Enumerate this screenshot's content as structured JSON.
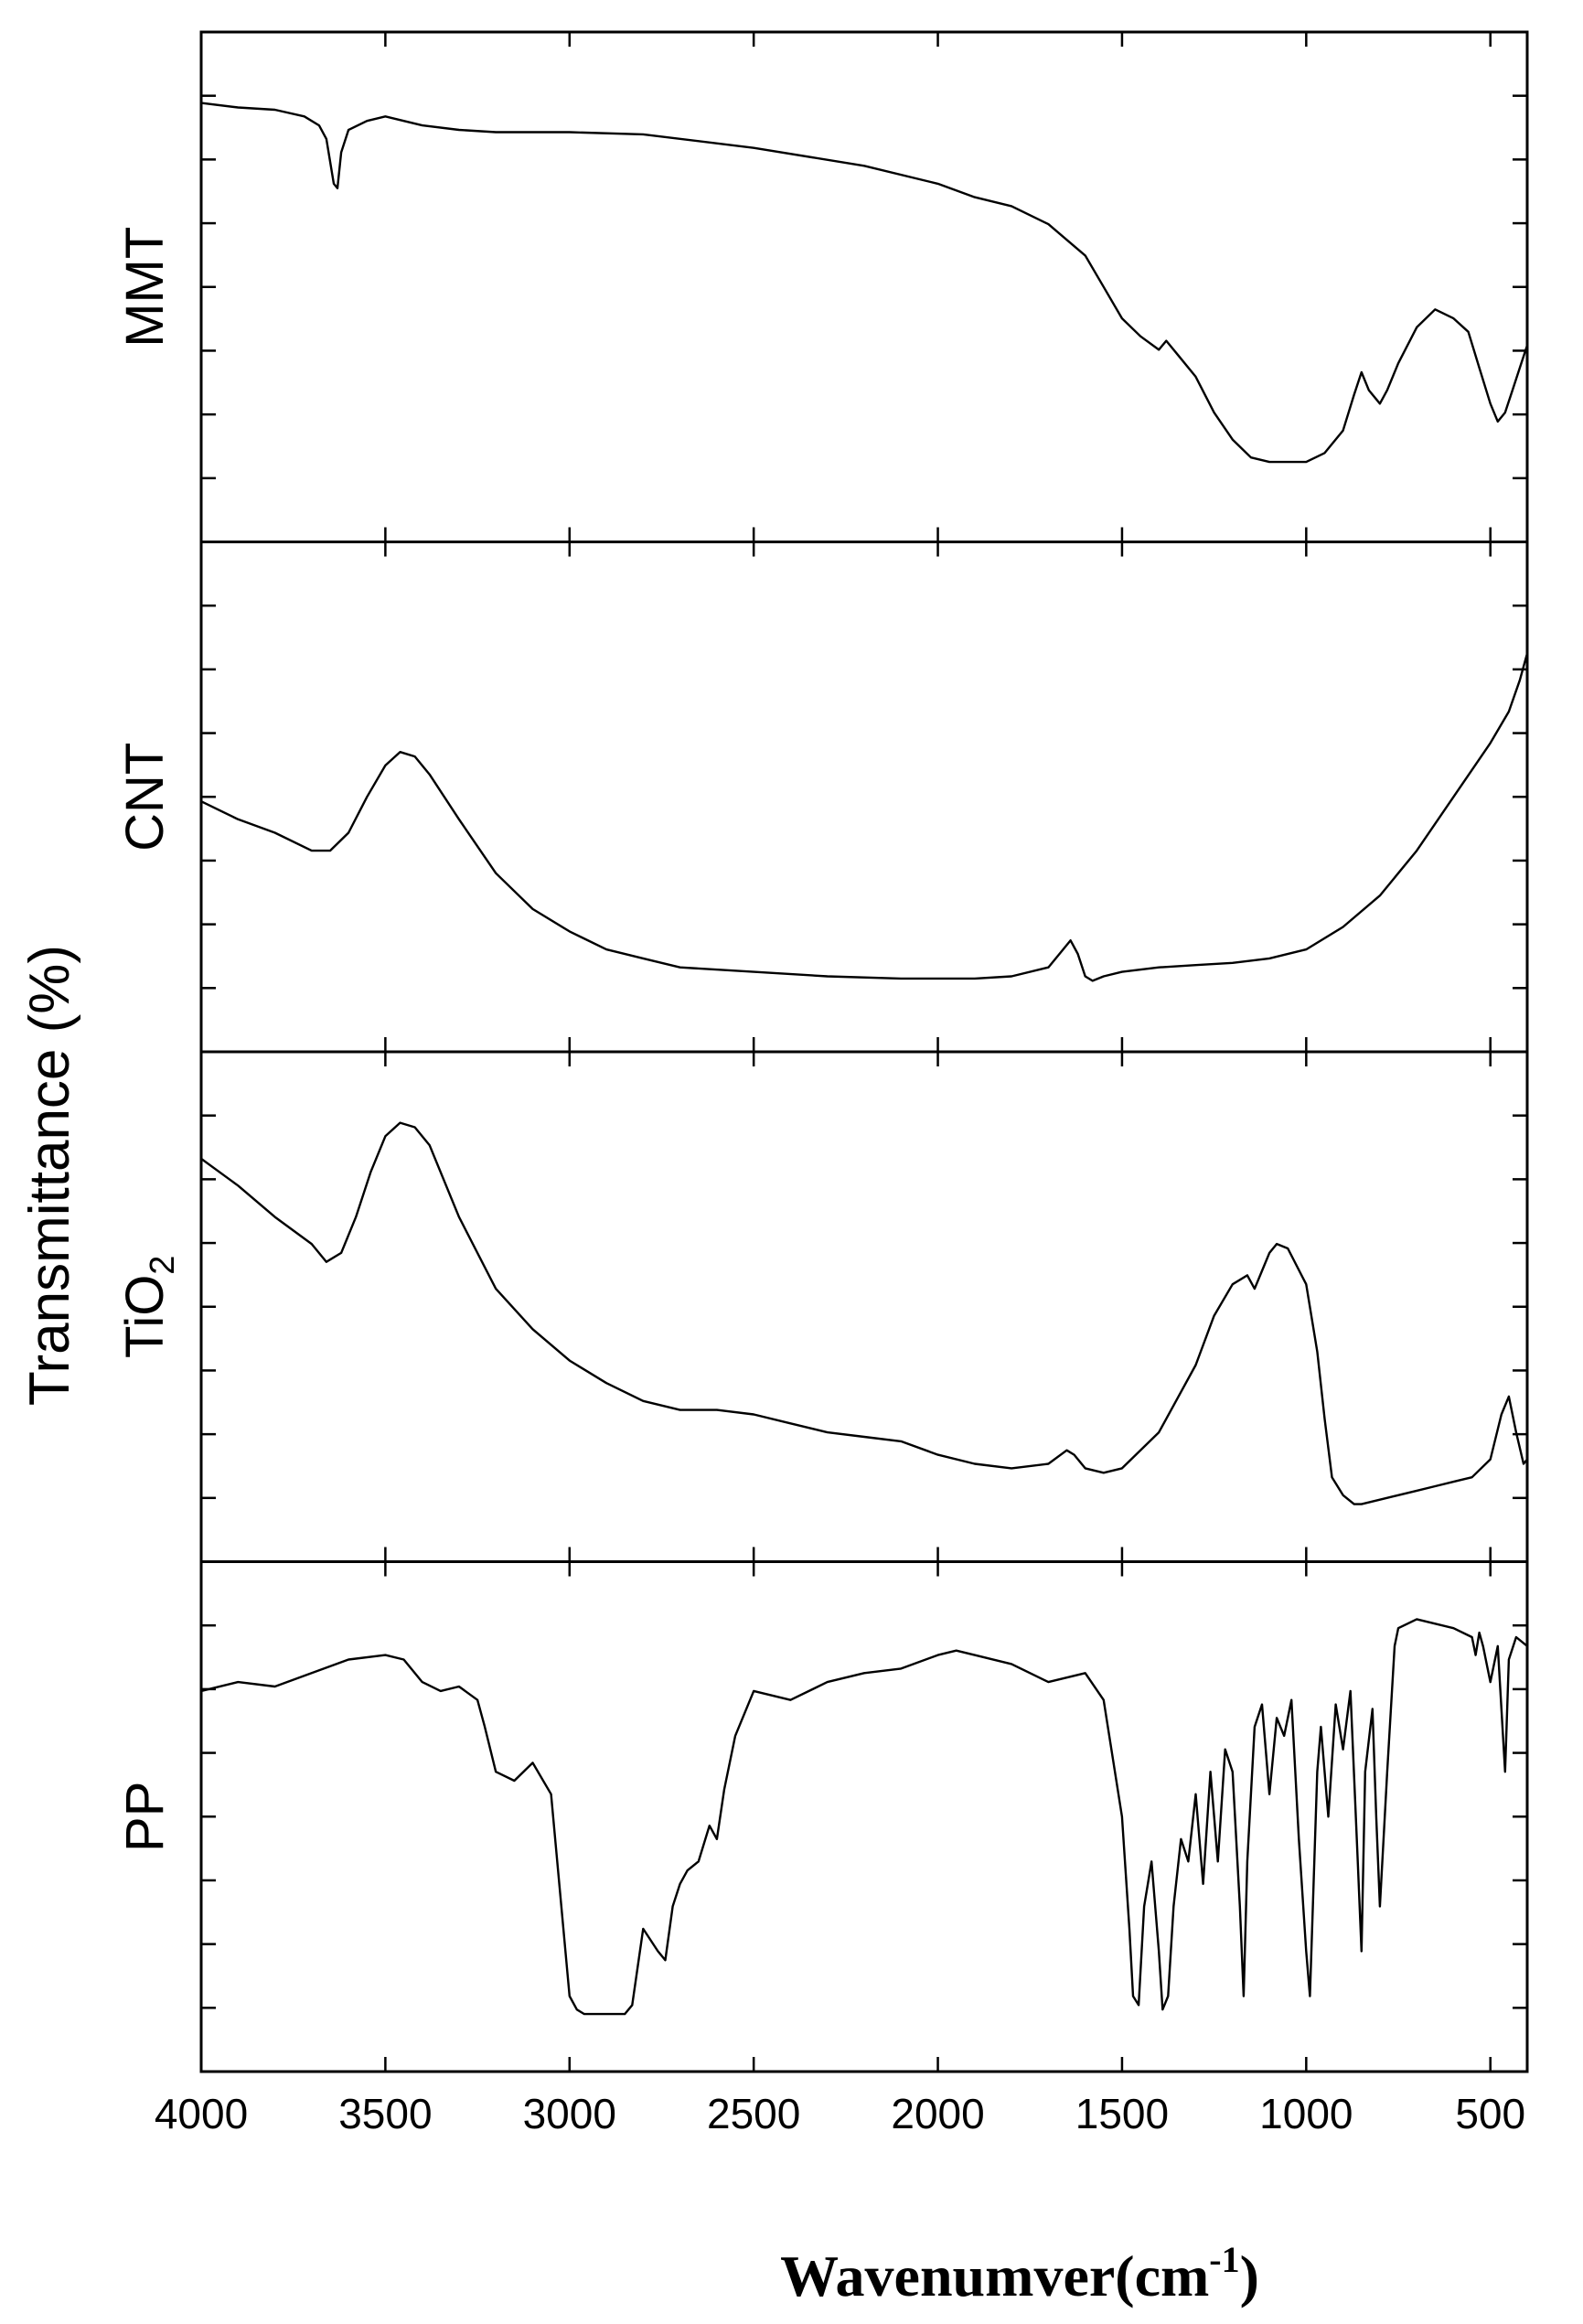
{
  "chart_data": {
    "type": "line",
    "xlabel": "Wavenumver(cm",
    "xlabel_sup": "-1",
    "xlabel_end": ")",
    "ylabel": "Transmittance (%)",
    "xlim": [
      4000,
      400
    ],
    "x_reversed": true,
    "xticks": [
      4000,
      3500,
      3000,
      2500,
      2000,
      1500,
      1000,
      500
    ],
    "xtick_labels": [
      "4000",
      "3500",
      "3000",
      "2500",
      "2000",
      "1500",
      "1000",
      "500"
    ],
    "ylim": [
      0,
      100
    ],
    "stacked_panels": true,
    "series": [
      {
        "name": "MMT",
        "name_main": "MMT",
        "name_sub": "",
        "x": [
          4000,
          3900,
          3800,
          3720,
          3680,
          3660,
          3640,
          3630,
          3620,
          3600,
          3550,
          3500,
          3450,
          3400,
          3300,
          3200,
          3000,
          2800,
          2500,
          2200,
          2000,
          1900,
          1800,
          1700,
          1600,
          1550,
          1500,
          1450,
          1400,
          1380,
          1350,
          1300,
          1250,
          1200,
          1150,
          1100,
          1000,
          950,
          900,
          870,
          850,
          830,
          800,
          780,
          750,
          700,
          650,
          600,
          560,
          530,
          500,
          480,
          460,
          440,
          420,
          400
        ],
        "y": [
          91,
          90,
          89.5,
          88,
          86,
          83,
          73,
          72,
          80,
          85,
          87,
          88,
          87,
          86,
          85,
          84.5,
          84.5,
          84,
          81,
          77,
          73,
          70,
          68,
          64,
          57,
          50,
          43,
          39,
          36,
          38,
          35,
          30,
          22,
          16,
          12,
          11,
          11,
          13,
          18,
          26,
          31,
          27,
          24,
          27,
          33,
          41,
          45,
          43,
          40,
          32,
          24,
          20,
          22,
          27,
          32,
          37
        ],
        "ylim": [
          0,
          100
        ]
      },
      {
        "name": "CNT",
        "name_main": "CNT",
        "name_sub": "",
        "x": [
          4000,
          3900,
          3800,
          3700,
          3650,
          3600,
          3550,
          3500,
          3460,
          3420,
          3380,
          3300,
          3200,
          3100,
          3000,
          2900,
          2800,
          2700,
          2500,
          2300,
          2100,
          2000,
          1900,
          1800,
          1700,
          1660,
          1640,
          1620,
          1600,
          1580,
          1550,
          1500,
          1400,
          1300,
          1200,
          1100,
          1000,
          900,
          800,
          700,
          600,
          500,
          450,
          420,
          400
        ],
        "y": [
          49,
          45,
          42,
          38,
          38,
          42,
          50,
          57,
          60,
          59,
          55,
          45,
          33,
          25,
          20,
          16,
          14,
          12,
          11,
          10,
          9.5,
          9.5,
          9.5,
          10,
          12,
          16,
          18,
          15,
          10,
          9,
          10,
          11,
          12,
          12.5,
          13,
          14,
          16,
          21,
          28,
          38,
          50,
          62,
          69,
          76,
          82
        ],
        "ylim": [
          0,
          100
        ]
      },
      {
        "name": "TiO2",
        "name_main": "TiO",
        "name_sub": "2",
        "x": [
          4000,
          3900,
          3800,
          3700,
          3660,
          3620,
          3580,
          3540,
          3500,
          3460,
          3420,
          3380,
          3300,
          3200,
          3100,
          3000,
          2900,
          2800,
          2700,
          2600,
          2500,
          2400,
          2300,
          2200,
          2100,
          2000,
          1900,
          1800,
          1700,
          1650,
          1630,
          1600,
          1550,
          1500,
          1400,
          1300,
          1250,
          1200,
          1160,
          1140,
          1120,
          1100,
          1080,
          1050,
          1000,
          970,
          950,
          930,
          900,
          870,
          850,
          800,
          750,
          700,
          650,
          600,
          550,
          500,
          470,
          450,
          430,
          410,
          400
        ],
        "y": [
          83,
          77,
          70,
          64,
          60,
          62,
          70,
          80,
          88,
          91,
          90,
          86,
          70,
          54,
          45,
          38,
          33,
          29,
          27,
          27,
          26,
          24,
          22,
          21,
          20,
          17,
          15,
          14,
          15,
          18,
          17,
          14,
          13,
          14,
          22,
          37,
          48,
          55,
          57,
          54,
          58,
          62,
          64,
          63,
          55,
          40,
          25,
          12,
          8,
          6,
          6,
          7,
          8,
          9,
          10,
          11,
          12,
          16,
          26,
          30,
          22,
          15,
          16
        ],
        "ylim": [
          0,
          100
        ]
      },
      {
        "name": "PP",
        "name_main": "PP",
        "name_sub": "",
        "x": [
          4000,
          3900,
          3800,
          3700,
          3600,
          3500,
          3450,
          3400,
          3350,
          3300,
          3250,
          3230,
          3200,
          3150,
          3100,
          3050,
          3000,
          2980,
          2960,
          2900,
          2850,
          2830,
          2800,
          2760,
          2740,
          2720,
          2700,
          2680,
          2650,
          2620,
          2600,
          2580,
          2550,
          2500,
          2400,
          2300,
          2200,
          2100,
          2000,
          1950,
          1900,
          1800,
          1700,
          1600,
          1550,
          1500,
          1480,
          1470,
          1455,
          1440,
          1420,
          1400,
          1390,
          1375,
          1360,
          1340,
          1320,
          1300,
          1280,
          1260,
          1240,
          1220,
          1200,
          1180,
          1170,
          1160,
          1140,
          1120,
          1100,
          1080,
          1060,
          1040,
          1020,
          1000,
          990,
          980,
          970,
          960,
          940,
          920,
          900,
          880,
          860,
          850,
          840,
          820,
          810,
          800,
          780,
          760,
          750,
          700,
          650,
          600,
          550,
          540,
          530,
          520,
          500,
          480,
          470,
          460,
          450,
          430,
          400
        ],
        "y": [
          78,
          80,
          79,
          82,
          85,
          86,
          85,
          80,
          78,
          79,
          76,
          70,
          60,
          58,
          62,
          55,
          10,
          7,
          6,
          6,
          6,
          8,
          25,
          20,
          18,
          30,
          35,
          38,
          40,
          48,
          45,
          56,
          68,
          78,
          76,
          80,
          82,
          83,
          86,
          87,
          86,
          84,
          80,
          82,
          76,
          50,
          25,
          10,
          8,
          30,
          40,
          20,
          7,
          10,
          30,
          45,
          40,
          55,
          35,
          60,
          40,
          65,
          60,
          30,
          10,
          40,
          70,
          75,
          55,
          72,
          68,
          76,
          45,
          20,
          10,
          35,
          60,
          70,
          50,
          75,
          65,
          78,
          40,
          20,
          60,
          74,
          50,
          30,
          60,
          88,
          92,
          94,
          93,
          92,
          90,
          86,
          91,
          88,
          80,
          88,
          74,
          60,
          85,
          90,
          88
        ],
        "ylim": [
          0,
          100
        ]
      }
    ]
  }
}
